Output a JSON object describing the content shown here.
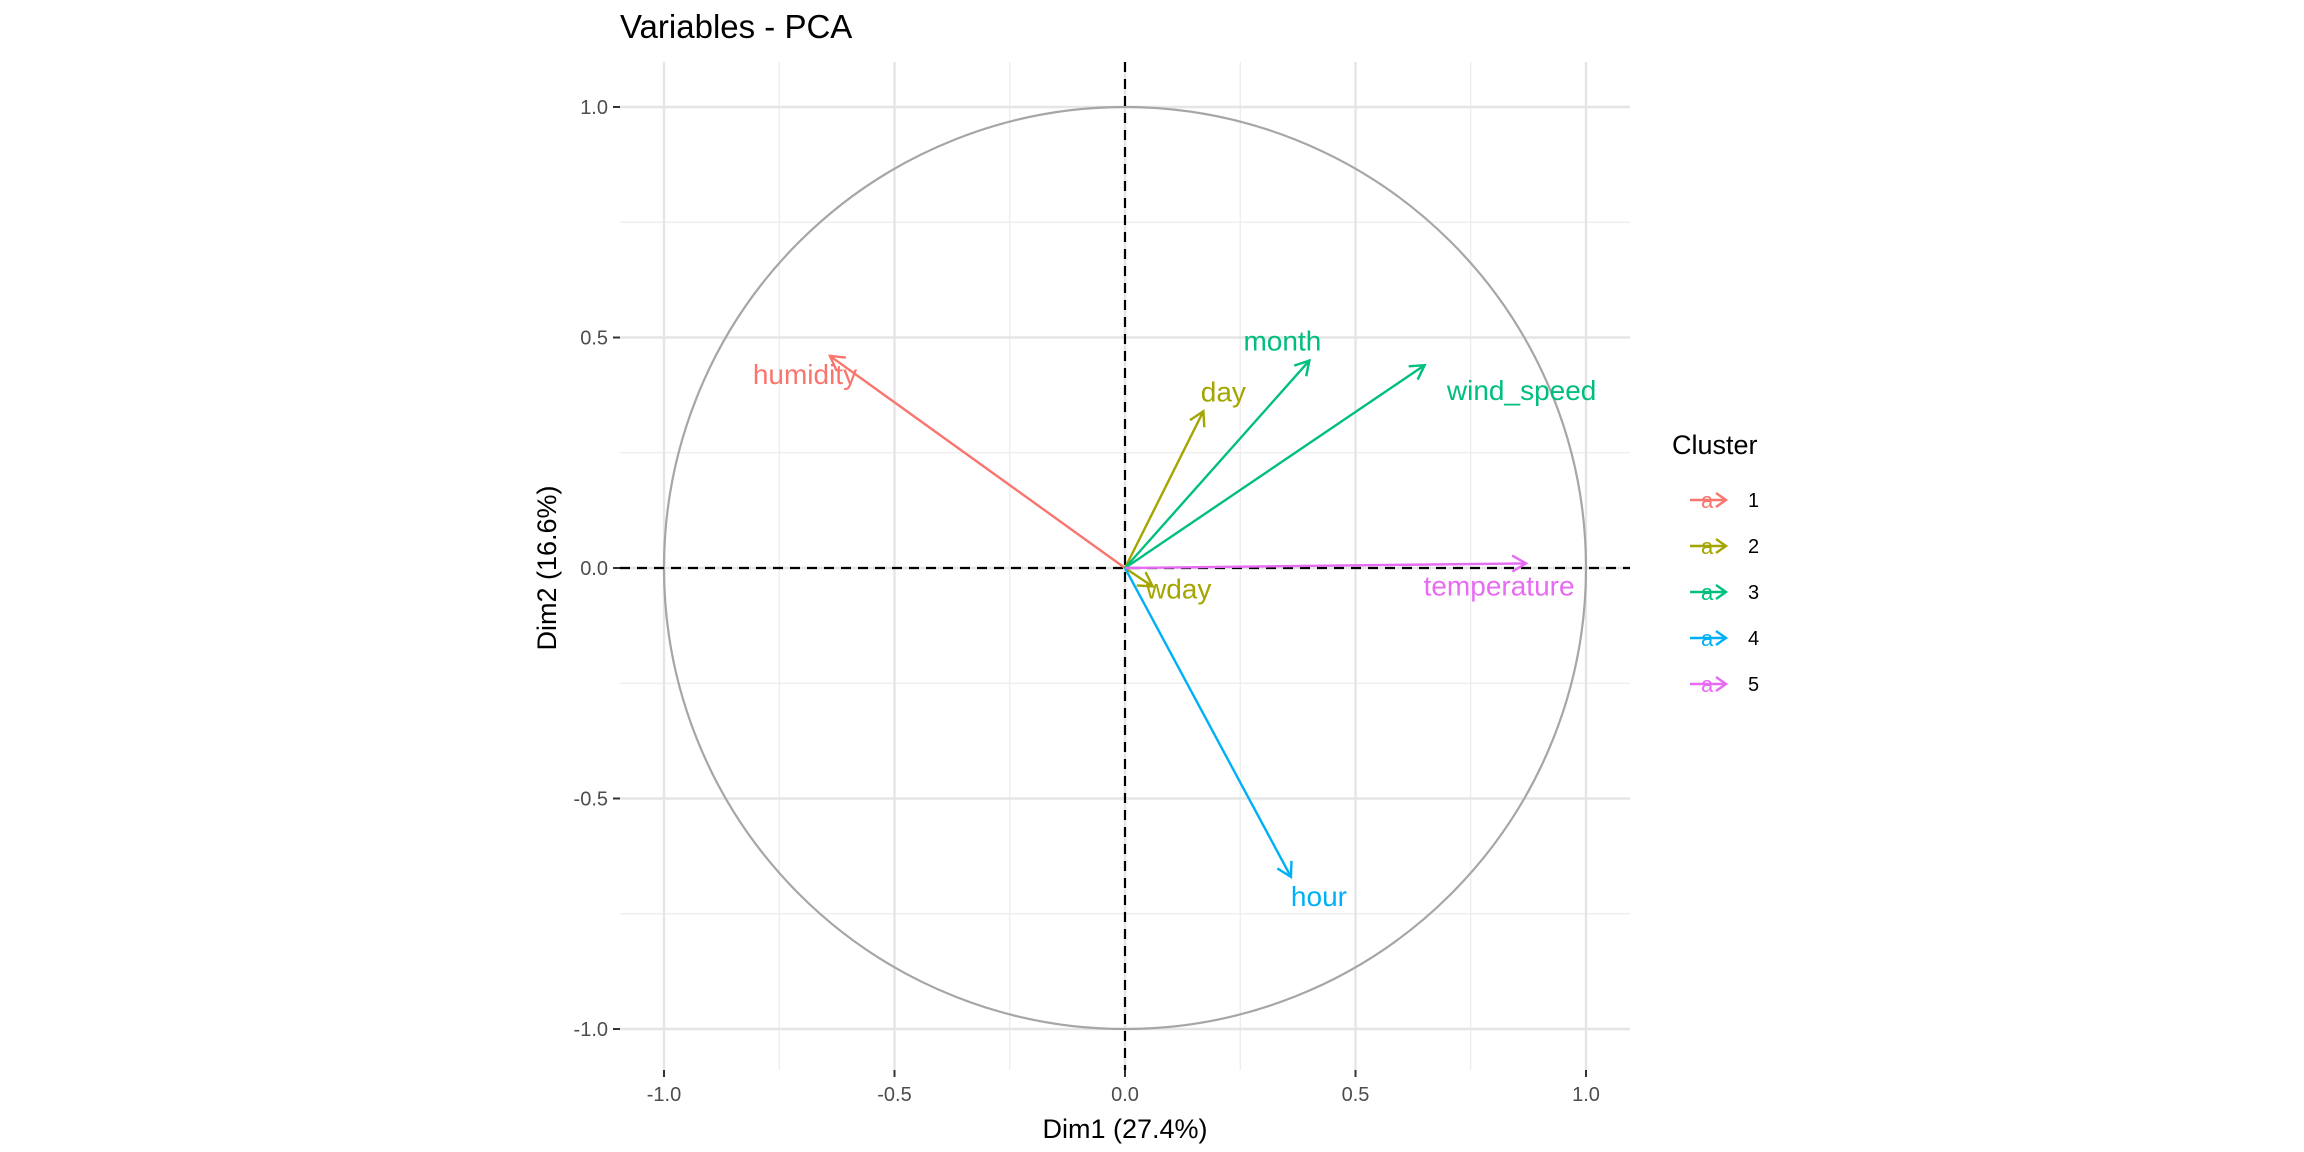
{
  "chart_data": {
    "type": "scatter",
    "subtype": "pca-variable-correlation-circle",
    "title": "Variables - PCA",
    "xlabel": "Dim1 (27.4%)",
    "ylabel": "Dim2 (16.6%)",
    "xlim": [
      -1.0,
      1.0
    ],
    "ylim": [
      -1.0,
      1.0
    ],
    "xticks": [
      -1.0,
      -0.5,
      0.0,
      0.5,
      1.0
    ],
    "xtick_labels": [
      "-1.0",
      "-0.5",
      "0.0",
      "0.5",
      "1.0"
    ],
    "yticks": [
      -1.0,
      -0.5,
      0.0,
      0.5,
      1.0
    ],
    "ytick_labels": [
      "-1.0",
      "-0.5",
      "0.0",
      "0.5",
      "1.0"
    ],
    "grid": true,
    "unit_circle": true,
    "reference_lines": "dashed at x=0 and y=0",
    "legend": {
      "title": "Cluster",
      "placement": "right",
      "key_glyph": "a",
      "entries": [
        {
          "label": "1",
          "color": "#F8766D"
        },
        {
          "label": "2",
          "color": "#A3A500"
        },
        {
          "label": "3",
          "color": "#00BF7D"
        },
        {
          "label": "4",
          "color": "#00B0F6"
        },
        {
          "label": "5",
          "color": "#E76BF3"
        }
      ]
    },
    "variables": [
      {
        "name": "humidity",
        "x": -0.64,
        "y": 0.46,
        "cluster": "1"
      },
      {
        "name": "day",
        "x": 0.17,
        "y": 0.34,
        "cluster": "2"
      },
      {
        "name": "wday",
        "x": 0.06,
        "y": -0.04,
        "cluster": "2"
      },
      {
        "name": "month",
        "x": 0.4,
        "y": 0.45,
        "cluster": "3"
      },
      {
        "name": "wind_speed",
        "x": 0.65,
        "y": 0.44,
        "cluster": "3"
      },
      {
        "name": "hour",
        "x": 0.36,
        "y": -0.67,
        "cluster": "4"
      },
      {
        "name": "temperature",
        "x": 0.87,
        "y": 0.01,
        "cluster": "5"
      }
    ]
  }
}
